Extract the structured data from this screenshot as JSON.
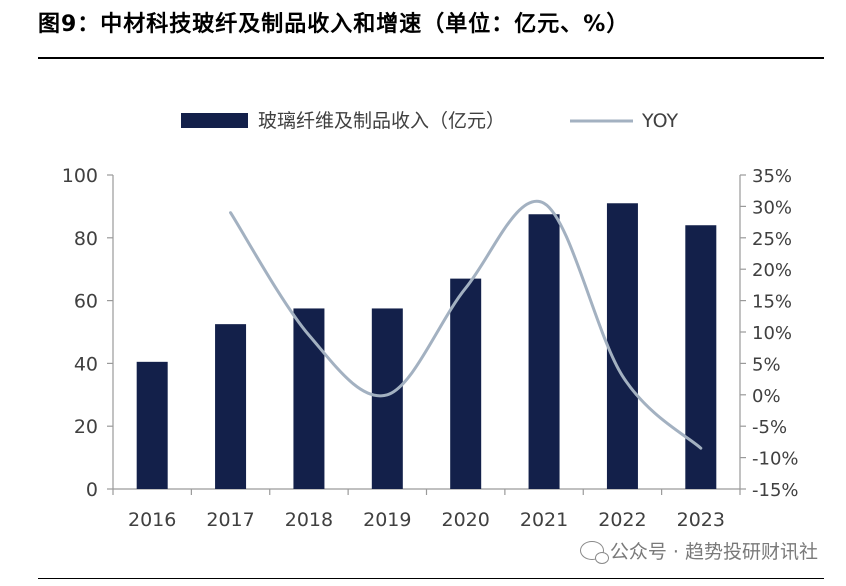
{
  "header": {
    "title": "图9：中材科技玻纤及制品收入和增速（单位：亿元、%）"
  },
  "watermark": {
    "text": "公众号 · 趋势投研财讯社"
  },
  "chart_data": {
    "type": "bar",
    "categories": [
      "2016",
      "2017",
      "2018",
      "2019",
      "2020",
      "2021",
      "2022",
      "2023"
    ],
    "series": [
      {
        "name": "玻璃纤维及制品收入（亿元）",
        "type": "bar",
        "axis": "left",
        "values": [
          40.5,
          52.5,
          57.5,
          57.5,
          67,
          87.5,
          91,
          84
        ]
      },
      {
        "name": "YOY",
        "type": "line",
        "axis": "right",
        "values": [
          null,
          29,
          9.5,
          0,
          17,
          30.5,
          3,
          -8.5
        ]
      }
    ],
    "left_axis": {
      "min": 0,
      "max": 100,
      "ticks": [
        0,
        20,
        40,
        60,
        80,
        100
      ]
    },
    "right_axis": {
      "min": -15,
      "max": 35,
      "ticks": [
        -15,
        -10,
        -5,
        0,
        5,
        10,
        15,
        20,
        25,
        30,
        35
      ],
      "tick_labels": [
        "-15%",
        "-10%",
        "-5%",
        "0%",
        "5%",
        "10%",
        "15%",
        "20%",
        "25%",
        "30%",
        "35%"
      ]
    },
    "colors": {
      "bar": "#13204a",
      "line": "#a3b1c1"
    },
    "legend_position": "top-center",
    "grid": false
  }
}
